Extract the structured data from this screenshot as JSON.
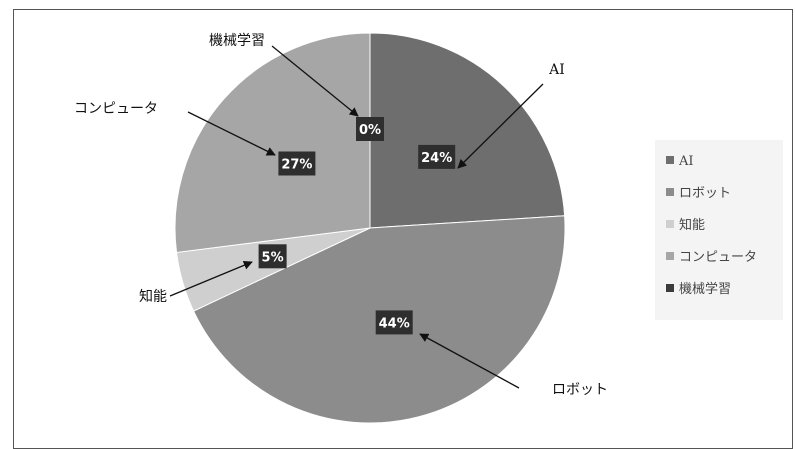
{
  "chart_data": {
    "type": "pie",
    "slices": [
      {
        "label": "AI",
        "value": 24,
        "value_label": "24%",
        "color": "#6e6e6e"
      },
      {
        "label": "ロボット",
        "value": 44,
        "value_label": "44%",
        "color": "#8c8c8c"
      },
      {
        "label": "知能",
        "value": 5,
        "value_label": "5%",
        "color": "#cfcfcf"
      },
      {
        "label": "コンピュータ",
        "value": 27,
        "value_label": "27%",
        "color": "#a6a6a6"
      },
      {
        "label": "機械学習",
        "value": 0,
        "value_label": "0%",
        "color": "#3c3c3c"
      }
    ],
    "legend": [
      "AI",
      "ロボット",
      "知能",
      "コンピュータ",
      "機械学習"
    ],
    "legend_position": "right",
    "label_style": "dark boxes with callout arrows"
  }
}
